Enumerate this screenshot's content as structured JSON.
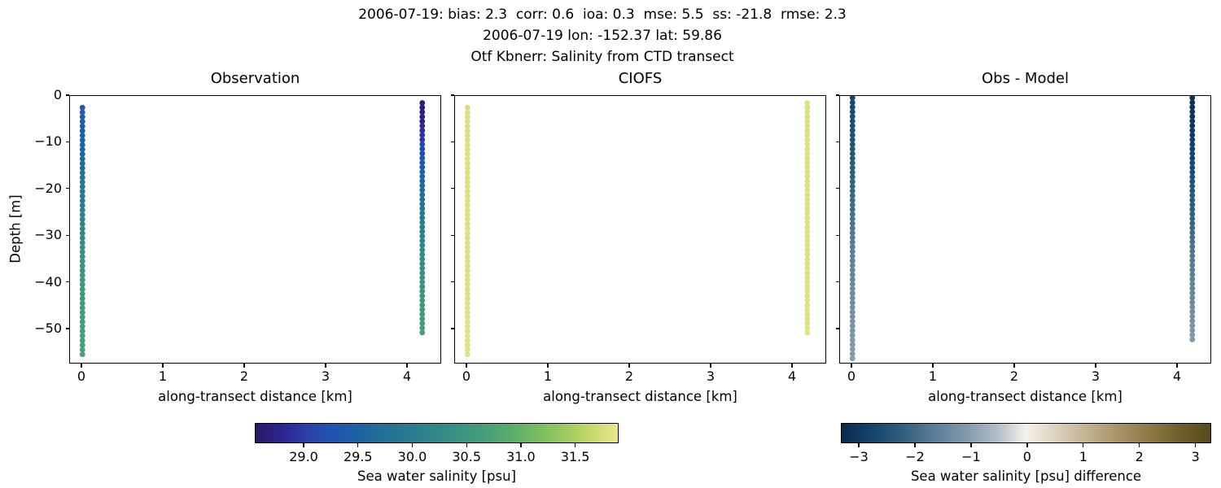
{
  "suptitle": {
    "line1": "2006-07-19: bias: 2.3  corr: 0.6  ioa: 0.3  mse: 5.5  ss: -21.8  rmse: 2.3",
    "line2": "2006-07-19 lon: -152.37 lat: 59.86",
    "line3": "Otf Kbnerr: Salinity from CTD transect"
  },
  "chart_data": {
    "type": "scatter",
    "xlabel": "along-transect distance [km]",
    "ylabel": "Depth [m]",
    "xlim": [
      -0.15,
      4.42
    ],
    "ylim": [
      -57.5,
      0
    ],
    "xticks": [
      0,
      1,
      2,
      3,
      4
    ],
    "xtick_labels": [
      "0",
      "1",
      "2",
      "3",
      "4"
    ],
    "yticks": [
      0,
      -10,
      -20,
      -30,
      -40,
      -50
    ],
    "ytick_labels": [
      "0",
      "−10",
      "−20",
      "−30",
      "−40",
      "−50"
    ],
    "grid": false,
    "background": "#ffffff",
    "spine_color": "#000000",
    "panels": [
      {
        "title": "Observation",
        "slug": "observation",
        "colormap": "haline",
        "show_ytick_labels": true,
        "columns": [
          {
            "x_km": 0,
            "depth_top": -2.5,
            "depth_bottom": -55.7,
            "point_spacing_m": 1,
            "value_profile": [
              [
                -2.5,
                29.35
              ],
              [
                -10,
                29.5
              ],
              [
                -18,
                29.8
              ],
              [
                -26,
                30.15
              ],
              [
                -36,
                30.45
              ],
              [
                -48,
                30.62
              ],
              [
                -55.7,
                30.72
              ]
            ]
          },
          {
            "x_km": 4.2,
            "depth_top": -1.5,
            "depth_bottom": -51,
            "point_spacing_m": 1,
            "value_profile": [
              [
                -1.5,
                28.6
              ],
              [
                -5,
                28.72
              ],
              [
                -9,
                28.95
              ],
              [
                -14,
                29.3
              ],
              [
                -20,
                29.65
              ],
              [
                -28,
                30.05
              ],
              [
                -38,
                30.4
              ],
              [
                -51,
                30.7
              ]
            ]
          }
        ]
      },
      {
        "title": "CIOFS",
        "slug": "ciofs",
        "colormap": "haline",
        "show_ytick_labels": false,
        "columns": [
          {
            "x_km": 0,
            "depth_top": -2.5,
            "depth_bottom": -55.7,
            "point_spacing_m": 1,
            "value_profile": [
              [
                -2.5,
                31.8
              ],
              [
                -55.7,
                31.82
              ]
            ]
          },
          {
            "x_km": 4.2,
            "depth_top": -1.5,
            "depth_bottom": -51,
            "point_spacing_m": 1,
            "value_profile": [
              [
                -1.5,
                31.8
              ],
              [
                -51,
                31.82
              ]
            ]
          }
        ]
      },
      {
        "title": "Obs - Model",
        "slug": "obs-model",
        "colormap": "diff",
        "show_ytick_labels": false,
        "columns": [
          {
            "x_km": 0,
            "depth_top": -0.4,
            "depth_bottom": -56.6,
            "point_spacing_m": 1,
            "value_profile": [
              [
                -0.4,
                -2.7
              ],
              [
                -8,
                -2.55
              ],
              [
                -20,
                -2.15
              ],
              [
                -32,
                -1.7
              ],
              [
                -44,
                -1.35
              ],
              [
                -56.6,
                -1.05
              ]
            ]
          },
          {
            "x_km": 4.2,
            "depth_top": -0.4,
            "depth_bottom": -52.5,
            "point_spacing_m": 1,
            "value_profile": [
              [
                -0.4,
                -3.2
              ],
              [
                -6,
                -3.05
              ],
              [
                -14,
                -2.7
              ],
              [
                -24,
                -2.25
              ],
              [
                -36,
                -1.7
              ],
              [
                -52.5,
                -1.1
              ]
            ]
          }
        ]
      }
    ],
    "colorbars": [
      {
        "slug": "salinity",
        "label": "Sea water salinity [psu]",
        "colormap": "haline",
        "domain": [
          28.55,
          31.9
        ],
        "ticks": [
          29.0,
          29.5,
          30.0,
          30.5,
          31.0,
          31.5
        ],
        "tick_labels": [
          "29.0",
          "29.5",
          "30.0",
          "30.5",
          "31.0",
          "31.5"
        ]
      },
      {
        "slug": "difference",
        "label": "Sea water salinity [psu] difference",
        "colormap": "diff",
        "domain": [
          -3.32,
          3.28
        ],
        "ticks": [
          -3,
          -2,
          -1,
          0,
          1,
          2,
          3
        ],
        "tick_labels": [
          "−3",
          "−2",
          "−1",
          "0",
          "1",
          "2",
          "3"
        ]
      }
    ],
    "colormaps": {
      "haline": {
        "domain": [
          28.55,
          31.9
        ],
        "stops": [
          [
            0,
            "#271a63"
          ],
          [
            0.07,
            "#2e2490"
          ],
          [
            0.14,
            "#2b3fa9"
          ],
          [
            0.21,
            "#2153b0"
          ],
          [
            0.29,
            "#1d64a0"
          ],
          [
            0.37,
            "#247393"
          ],
          [
            0.46,
            "#2c818c"
          ],
          [
            0.54,
            "#368e85"
          ],
          [
            0.63,
            "#449e7b"
          ],
          [
            0.72,
            "#5fb069"
          ],
          [
            0.82,
            "#8ac45e"
          ],
          [
            0.91,
            "#bcd566"
          ],
          [
            1,
            "#ece68f"
          ]
        ]
      },
      "diff": {
        "domain": [
          -3.32,
          3.28
        ],
        "stops": [
          [
            0,
            "#082b4d"
          ],
          [
            0.08,
            "#14436b"
          ],
          [
            0.17,
            "#32617f"
          ],
          [
            0.25,
            "#5a7e96"
          ],
          [
            0.33,
            "#7e97a9"
          ],
          [
            0.42,
            "#afbdc6"
          ],
          [
            0.5,
            "#f5f1ea"
          ],
          [
            0.58,
            "#dcd2be"
          ],
          [
            0.67,
            "#c1b08f"
          ],
          [
            0.75,
            "#a79367"
          ],
          [
            0.84,
            "#8b7743"
          ],
          [
            0.92,
            "#6f5e2b"
          ],
          [
            1,
            "#564c1d"
          ]
        ]
      }
    }
  }
}
